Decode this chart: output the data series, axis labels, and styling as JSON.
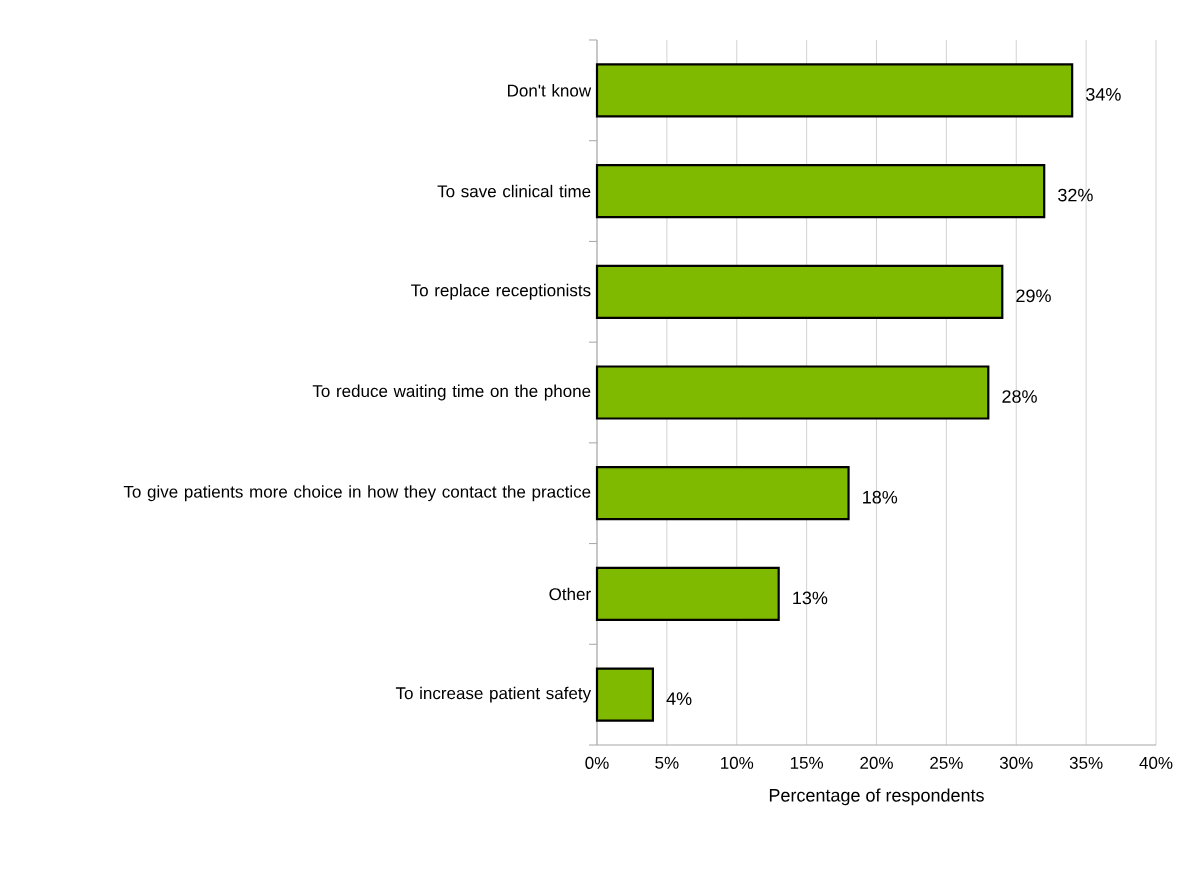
{
  "chart_data": {
    "type": "bar",
    "orientation": "horizontal",
    "categories": [
      "Don't know",
      "To save clinical time",
      "To replace receptionists",
      "To reduce waiting time on the phone",
      "To give patients more choice in how they contact the practice",
      "Other",
      "To increase patient safety"
    ],
    "values": [
      34,
      32,
      29,
      28,
      18,
      13,
      4
    ],
    "value_labels": [
      "34%",
      "32%",
      "29%",
      "28%",
      "18%",
      "13%",
      "4%"
    ],
    "color": "#7fba00",
    "xlabel": "Percentage of respondents",
    "xlim": [
      0,
      40
    ],
    "xticks": [
      {
        "value": 0,
        "label": "0%"
      },
      {
        "value": 5,
        "label": "5%"
      },
      {
        "value": 10,
        "label": "10%"
      },
      {
        "value": 15,
        "label": "15%"
      },
      {
        "value": 20,
        "label": "20%"
      },
      {
        "value": 25,
        "label": "25%"
      },
      {
        "value": 30,
        "label": "30%"
      },
      {
        "value": 35,
        "label": "35%"
      },
      {
        "value": 40,
        "label": "40%"
      }
    ],
    "grid": "x"
  }
}
